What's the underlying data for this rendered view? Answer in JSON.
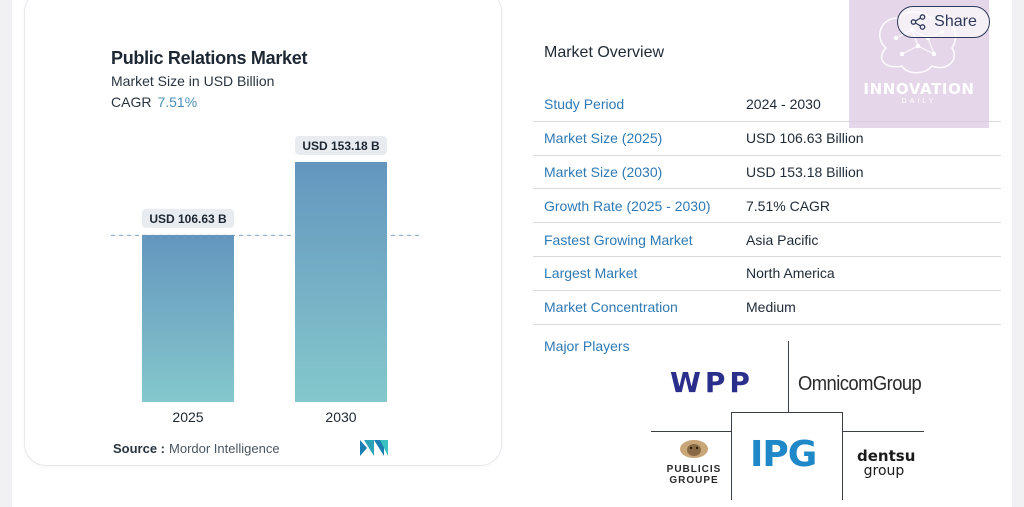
{
  "chart": {
    "title": "Public Relations Market",
    "subtitle": "Market Size in USD Billion",
    "cagr_label": "CAGR",
    "cagr_value": "7.51%",
    "source_label": "Source :",
    "source_value": "Mordor Intelligence",
    "logo_icon": "mordor-intelligence-logo",
    "colors": {
      "bar_top": "#6496be",
      "bar_bottom": "#84c8cc",
      "accent": "#4a8fb8"
    }
  },
  "chart_data": {
    "type": "bar",
    "categories": [
      "2025",
      "2030"
    ],
    "values": [
      106.63,
      153.18
    ],
    "data_labels": [
      "USD 106.63 B",
      "USD 153.18 B"
    ],
    "title": "Public Relations Market",
    "subtitle": "Market Size in USD Billion",
    "xlabel": "",
    "ylabel": "",
    "grid": false,
    "reference_line": "dashed line at 2025 value"
  },
  "overview": {
    "title": "Market Overview",
    "rows": [
      {
        "key": "Study Period",
        "value": "2024 - 2030"
      },
      {
        "key": "Market Size (2025)",
        "value": "USD 106.63 Billion"
      },
      {
        "key": "Market Size (2030)",
        "value": "USD 153.18 Billion"
      },
      {
        "key": "Growth Rate (2025 - 2030)",
        "value": "7.51% CAGR"
      },
      {
        "key": "Fastest Growing Market",
        "value": "Asia Pacific"
      },
      {
        "key": "Largest Market",
        "value": "North America"
      },
      {
        "key": "Market Concentration",
        "value": "Medium"
      }
    ],
    "major_players_label": "Major Players",
    "players": {
      "wpp": "WPP",
      "omnicom": "OmnicomGroup",
      "publicis_line1": "PUBLICIS",
      "publicis_line2": "GROUPE",
      "ipg": "IPG",
      "dentsu_line1": "dentsu",
      "dentsu_line2": "group"
    }
  },
  "share": {
    "label": "Share",
    "icon": "share-icon"
  },
  "watermark": {
    "name": "INNOVATION",
    "sub": "DAILY",
    "icon": "brain-icon"
  }
}
